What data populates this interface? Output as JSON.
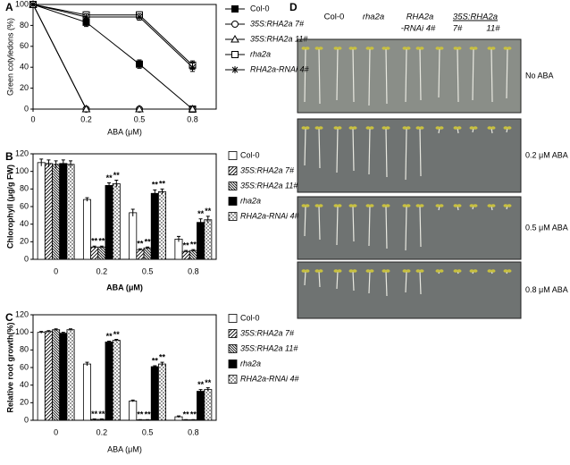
{
  "chart_data": [
    {
      "type": "line",
      "panel": "A",
      "x_label": "ABA (μM)",
      "y_label": "Green cotyledons (%)",
      "categories": [
        "0",
        "0.2",
        "0.5",
        "0.8"
      ],
      "ylim": [
        0,
        100
      ],
      "yticks": [
        0,
        20,
        40,
        60,
        80,
        100
      ],
      "series": [
        {
          "name": "Col-0",
          "color": "#000000",
          "marker": "square-filled",
          "values": [
            100,
            83,
            43,
            0
          ],
          "errors": [
            1,
            4,
            4,
            1
          ]
        },
        {
          "name": "35S:RHA2a 7#",
          "color": "#000000",
          "marker": "circle-open",
          "values": [
            100,
            0,
            0,
            0
          ],
          "errors": [
            1,
            1,
            1,
            1
          ]
        },
        {
          "name": "35S:RHA2a 11#",
          "color": "#000000",
          "marker": "triangle-open",
          "values": [
            100,
            0,
            0,
            0
          ],
          "errors": [
            1,
            1,
            1,
            1
          ]
        },
        {
          "name": "rha2a",
          "color": "#000000",
          "marker": "square-open",
          "values": [
            100,
            90,
            90,
            42
          ],
          "errors": [
            1,
            3,
            3,
            4
          ]
        },
        {
          "name": "RHA2a-RNAi 4#",
          "color": "#000000",
          "marker": "asterisk",
          "values": [
            100,
            88,
            88,
            40
          ],
          "errors": [
            1,
            3,
            3,
            4
          ]
        }
      ]
    },
    {
      "type": "bar",
      "panel": "B",
      "x_label": "ABA (μM)",
      "y_label": "Chlorophyll (μg/g FW)",
      "categories": [
        "0",
        "0.2",
        "0.5",
        "0.8"
      ],
      "ylim": [
        0,
        120
      ],
      "yticks": [
        0,
        20,
        40,
        60,
        80,
        100,
        120
      ],
      "series": [
        {
          "name": "Col-0",
          "color": "#ffffff",
          "pattern": "none",
          "values": [
            110,
            68,
            53,
            23
          ],
          "errors": [
            4,
            2,
            4,
            3
          ],
          "significance": [
            null,
            null,
            null,
            null
          ]
        },
        {
          "name": "35S:RHA2a 7#",
          "color": "#000000",
          "pattern": "hatch-right",
          "values": [
            109,
            14,
            11,
            9
          ],
          "errors": [
            4,
            1,
            1,
            1
          ],
          "significance": [
            null,
            "**",
            "**",
            "**"
          ]
        },
        {
          "name": "35S:RHA2a 11#",
          "color": "#000000",
          "pattern": "hatch-left",
          "values": [
            108,
            14,
            13,
            10
          ],
          "errors": [
            4,
            1,
            1,
            1
          ],
          "significance": [
            null,
            "**",
            "**",
            "**"
          ]
        },
        {
          "name": "rha2a",
          "color": "#000000",
          "pattern": "solid",
          "values": [
            109,
            84,
            75,
            42
          ],
          "errors": [
            4,
            3,
            4,
            4
          ],
          "significance": [
            null,
            "**",
            "**",
            "**"
          ]
        },
        {
          "name": "RHA2a-RNAi 4#",
          "color": "#000000",
          "pattern": "dots",
          "values": [
            108,
            86,
            77,
            45
          ],
          "errors": [
            4,
            4,
            3,
            4
          ],
          "significance": [
            null,
            "**",
            "**",
            "**"
          ]
        }
      ]
    },
    {
      "type": "bar",
      "panel": "C",
      "x_label": "ABA (μM)",
      "y_label": "Relative root growth(%)",
      "categories": [
        "0",
        "0.2",
        "0.5",
        "0.8"
      ],
      "ylim": [
        0,
        120
      ],
      "yticks": [
        0,
        20,
        40,
        60,
        80,
        100,
        120
      ],
      "series": [
        {
          "name": "Col-0",
          "color": "#ffffff",
          "pattern": "none",
          "values": [
            100,
            64,
            22,
            4
          ],
          "errors": [
            1,
            2,
            1,
            1
          ],
          "significance": [
            null,
            null,
            null,
            null
          ]
        },
        {
          "name": "35S:RHA2a 7#",
          "color": "#000000",
          "pattern": "hatch-right",
          "values": [
            101,
            1,
            0.5,
            0.5
          ],
          "errors": [
            1,
            0.5,
            0.3,
            0.3
          ],
          "significance": [
            null,
            "**",
            "**",
            "**"
          ]
        },
        {
          "name": "35S:RHA2a 11#",
          "color": "#000000",
          "pattern": "hatch-left",
          "values": [
            103,
            1,
            0.5,
            0.5
          ],
          "errors": [
            1,
            0.5,
            0.3,
            0.3
          ],
          "significance": [
            null,
            "**",
            "**",
            "**"
          ]
        },
        {
          "name": "rha2a",
          "color": "#000000",
          "pattern": "solid",
          "values": [
            99,
            89,
            61,
            33
          ],
          "errors": [
            1,
            1,
            1,
            2
          ],
          "significance": [
            null,
            "**",
            "**",
            "**"
          ]
        },
        {
          "name": "RHA2a-RNAi 4#",
          "color": "#000000",
          "pattern": "dots",
          "values": [
            103,
            91,
            64,
            35
          ],
          "errors": [
            1,
            1,
            2,
            2
          ],
          "significance": [
            null,
            "**",
            "**",
            "**"
          ]
        }
      ]
    }
  ],
  "photo_panel": {
    "panel": "D",
    "column_labels": [
      "Col-0",
      "rha2a",
      "RHA2a",
      "-RNAi  4#",
      "35S:RHA2a",
      "7#",
      "11#"
    ],
    "row_labels": [
      "No ABA",
      "0.2 μM ABA",
      "0.5 μM ABA",
      "0.8 μM ABA"
    ]
  }
}
